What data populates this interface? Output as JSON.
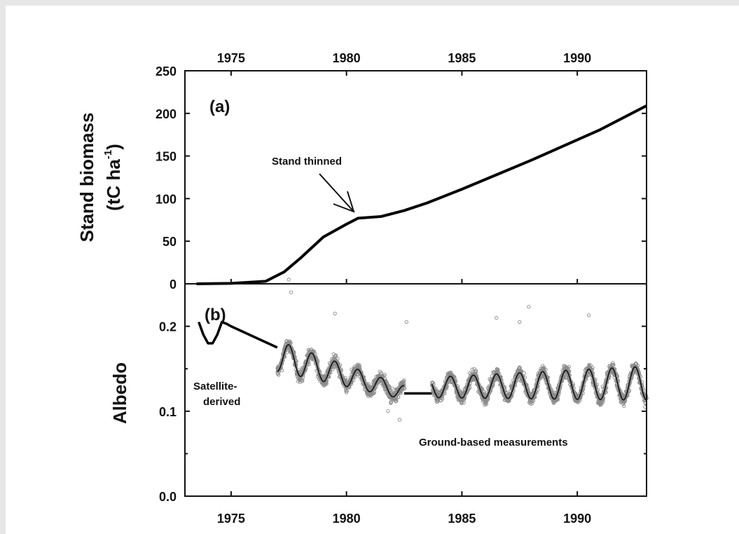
{
  "chart_data": [
    {
      "type": "line",
      "panel": "(a)",
      "ylabel": "Stand biomass",
      "ylabel_unit_base": "(tC ha",
      "ylabel_unit_exp": "-1",
      "ylabel_unit_close": ")",
      "xlim": [
        1973,
        1993
      ],
      "ylim": [
        0,
        250
      ],
      "x_ticks": [
        1975,
        1980,
        1985,
        1990
      ],
      "y_ticks": [
        0,
        50,
        100,
        150,
        200,
        250
      ],
      "x_tick_labels": [
        "1975",
        "1980",
        "1985",
        "1990"
      ],
      "y_tick_labels": [
        "0",
        "50",
        "100",
        "150",
        "200",
        "250"
      ],
      "grid": false,
      "series": [
        {
          "x": [
            1973.5,
            1975,
            1976.5,
            1977.3,
            1978,
            1979,
            1980,
            1980.5,
            1981.5,
            1982.5,
            1983.5,
            1985,
            1986.5,
            1988,
            1989.5,
            1991,
            1993
          ],
          "y": [
            0,
            0.5,
            3,
            14,
            30,
            55,
            70,
            77,
            79,
            86,
            95,
            111,
            128,
            145,
            163,
            181,
            209
          ]
        }
      ],
      "annotations": [
        {
          "text": "Stand thinned",
          "x": 1980.5,
          "y": 77
        }
      ]
    },
    {
      "type": "scatter",
      "panel": "(b)",
      "ylabel": "Albedo",
      "xlim": [
        1973,
        1993
      ],
      "ylim": [
        0,
        0.25
      ],
      "x_ticks": [
        1975,
        1980,
        1985,
        1990
      ],
      "y_ticks": [
        0.0,
        0.1,
        0.2
      ],
      "x_tick_labels": [
        "1975",
        "1980",
        "1985",
        "1990"
      ],
      "y_tick_labels": [
        "0.0",
        "0.1",
        "0.2"
      ],
      "grid": false,
      "series": [
        {
          "kind": "line",
          "x": [
            1973.6,
            1973.8,
            1974.0,
            1974.2,
            1974.4,
            1974.6,
            1974.8,
            1975.0,
            1977.0
          ],
          "y": [
            0.205,
            0.19,
            0.18,
            0.18,
            0.19,
            0.205,
            0.203,
            0.2,
            0.175
          ]
        },
        {
          "kind": "seasonal-fit",
          "x_start": 1977.0,
          "x_end": 1982.5,
          "mean_start": 0.165,
          "mean_end": 0.122,
          "amplitude_start": 0.018,
          "amplitude_end": 0.008
        },
        {
          "kind": "line",
          "x": [
            1982.5,
            1983.7
          ],
          "y": [
            0.121,
            0.121
          ]
        },
        {
          "kind": "seasonal-fit",
          "x_start": 1983.7,
          "x_end": 1993,
          "mean_start": 0.128,
          "mean_end": 0.133,
          "amplitude_start": 0.012,
          "amplitude_end": 0.02
        },
        {
          "kind": "scatter",
          "outliers": [
            {
              "x": 1977.5,
              "y": 0.255
            },
            {
              "x": 1977.6,
              "y": 0.24
            },
            {
              "x": 1979.5,
              "y": 0.215
            },
            {
              "x": 1982.6,
              "y": 0.205
            },
            {
              "x": 1986.5,
              "y": 0.21
            },
            {
              "x": 1987.5,
              "y": 0.205
            },
            {
              "x": 1987.9,
              "y": 0.223
            },
            {
              "x": 1990.5,
              "y": 0.213
            },
            {
              "x": 1981.8,
              "y": 0.1
            },
            {
              "x": 1982.3,
              "y": 0.09
            }
          ]
        }
      ],
      "annotations": [
        {
          "text_line1": "Satellite-",
          "text_line2": "derived"
        },
        {
          "text": "Ground-based measurements"
        }
      ]
    }
  ]
}
